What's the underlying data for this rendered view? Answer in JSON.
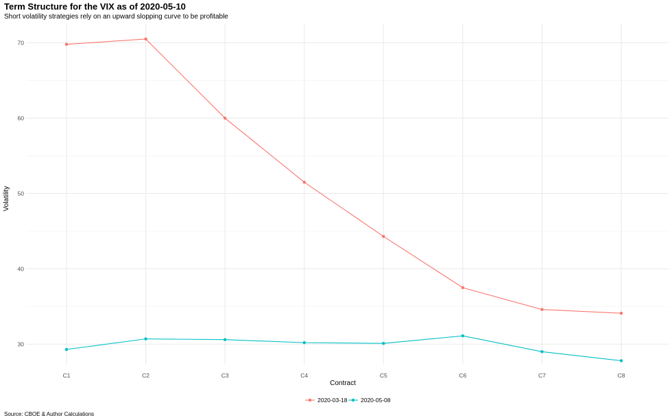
{
  "chart_data": {
    "type": "line",
    "title": "Term Structure for the VIX as of 2020-05-10",
    "subtitle": "Short volatility strategies rely on an upward slopping curve to be profitable",
    "xlabel": "Contract",
    "ylabel": "Volatility",
    "caption": "Source: CBOE & Author Calculations",
    "categories": [
      "C1",
      "C2",
      "C3",
      "C4",
      "C5",
      "C6",
      "C7",
      "C8"
    ],
    "yticks": [
      30,
      40,
      50,
      60,
      70
    ],
    "ylim": [
      27.3,
      72.5
    ],
    "grid": true,
    "legend_position": "bottom",
    "series": [
      {
        "name": "2020-03-18",
        "color": "#F8766D",
        "values": [
          69.8,
          70.5,
          60.0,
          51.5,
          44.3,
          37.5,
          34.6,
          34.1
        ]
      },
      {
        "name": "2020-05-08",
        "color": "#00BFC4",
        "values": [
          29.3,
          30.7,
          30.6,
          30.2,
          30.1,
          31.1,
          29.0,
          27.8
        ]
      }
    ]
  }
}
